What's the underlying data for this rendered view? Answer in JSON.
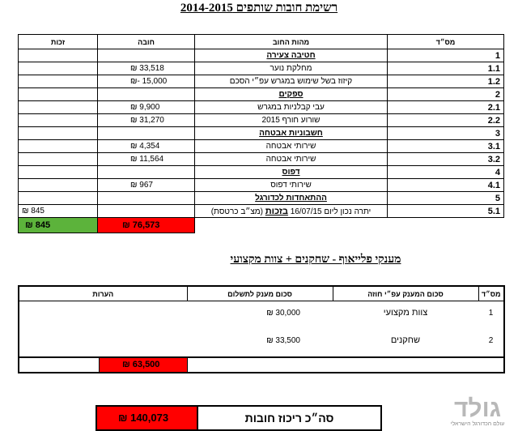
{
  "header": {
    "title": "רשימת חובות שותפים 2014-2015"
  },
  "table1": {
    "columns": [
      "מס״ד",
      "מהות החוב",
      "חובה",
      "זכות"
    ],
    "sections": [
      {
        "num": "1",
        "title": "חטיבה צעירה",
        "items": [
          {
            "num": "1.1",
            "desc": "מחלקת נוער",
            "debit": "₪ 33,518"
          },
          {
            "num": "1.2",
            "desc": "קיזוז בשל שימוש במגרש עפ״י הסכם",
            "debit": "₪- 15,000"
          }
        ]
      },
      {
        "num": "2",
        "title": "ספקים",
        "items": [
          {
            "num": "2.1",
            "desc": "עבי קבלניות במגרש",
            "debit": "₪ 9,900"
          },
          {
            "num": "2.2",
            "desc": "שורוע חורף 2015",
            "debit": "₪ 31,270"
          }
        ]
      },
      {
        "num": "3",
        "title": "חשבוניות אבטחה",
        "items": [
          {
            "num": "3.1",
            "desc": "שירותי אבטחה",
            "debit": "₪ 4,354"
          },
          {
            "num": "3.2",
            "desc": "שירותי אבטחה",
            "debit": "₪ 11,564"
          }
        ]
      },
      {
        "num": "4",
        "title": "דפוס",
        "items": [
          {
            "num": "4.1",
            "desc": "שירותי דפוס",
            "debit": "₪ 967"
          }
        ]
      },
      {
        "num": "5",
        "title": "ההתאחדות לכדורגל",
        "items": [
          {
            "num": "5.1",
            "desc": "יתרה נכון ליום 16/07/15",
            "desc_emphasis": "בזכות",
            "desc_suffix": "(מצ״ב כרטסת)",
            "credit": "₪ 845"
          }
        ]
      }
    ],
    "totals": {
      "debit": "₪ 76,573",
      "credit": "₪ 845"
    }
  },
  "section2": {
    "title": "מענקי פלייאוף - שחקנים + צוות מקצועי"
  },
  "table2": {
    "columns": [
      "מס״ד",
      "סכום המענק עפ״י חוזה",
      "סכום מענק לתשלום",
      "הערות"
    ],
    "rows": [
      {
        "num": "1",
        "desc": "צוות מקצועי",
        "amount": "₪ 30,000"
      },
      {
        "num": "2",
        "desc": "שחקנים",
        "amount": "₪ 33,500"
      }
    ],
    "total": "₪ 63,500"
  },
  "summary": {
    "label": "סה״כ ריכוז חובות",
    "amount": "₪ 140,073"
  },
  "logo": {
    "name": "גולד",
    "tagline": "עולם הכדורגל הישראלי"
  }
}
